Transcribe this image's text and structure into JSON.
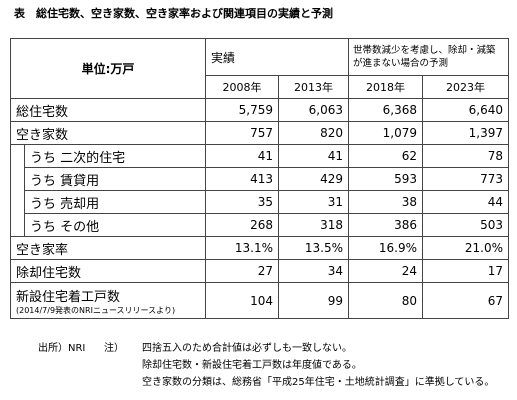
{
  "title": "表　総住宅数、空き家数、空き家率および関連項目の実績と予測",
  "table": {
    "unit": "単位:万戸",
    "actual": "実績",
    "forecast": "世帯数減少を考慮し、除却・減築が進まない場合の予測",
    "years": [
      "2008年",
      "2013年",
      "2018年",
      "2023年"
    ],
    "rows": [
      {
        "label": "総住宅数",
        "values": [
          "5,759",
          "6,063",
          "6,368",
          "6,640"
        ]
      },
      {
        "label": "空き家数",
        "values": [
          "757",
          "820",
          "1,079",
          "1,397"
        ],
        "breakdown": [
          {
            "label": "うち 二次的住宅",
            "values": [
              "41",
              "41",
              "62",
              "78"
            ]
          },
          {
            "label": "うち 賃貸用",
            "values": [
              "413",
              "429",
              "593",
              "773"
            ]
          },
          {
            "label": "うち 売却用",
            "values": [
              "35",
              "31",
              "38",
              "44"
            ]
          },
          {
            "label": "うち その他",
            "values": [
              "268",
              "318",
              "386",
              "503"
            ]
          }
        ]
      },
      {
        "label": "空き家率",
        "values": [
          "13.1%",
          "13.5%",
          "16.9%",
          "21.0%"
        ]
      },
      {
        "label": "除却住宅数",
        "values": [
          "27",
          "34",
          "24",
          "17"
        ]
      },
      {
        "label": "新設住宅着工戸数",
        "note": "(2014/7/9発表のNRIニュースリリースより)",
        "values": [
          "104",
          "99",
          "80",
          "67"
        ]
      }
    ]
  },
  "notes": {
    "source": "出所）NRI",
    "label": "注）",
    "lines": [
      "四捨五入のため合計値は必ずしも一致しない。",
      "除却住宅数・新設住宅着工戸数は年度値である。",
      "空き家数の分類は、総務省「平成25年住宅・土地統計調査」に準拠している。"
    ]
  }
}
